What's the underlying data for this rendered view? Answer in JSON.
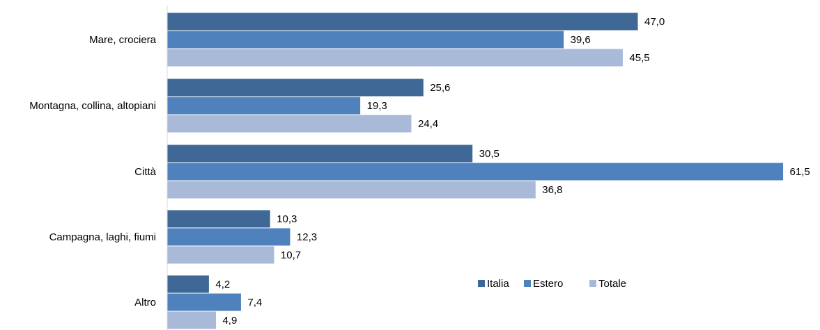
{
  "chart_data": {
    "type": "bar",
    "orientation": "horizontal",
    "categories": [
      "Mare, crociera",
      "Montagna, collina, altopiani",
      "Città",
      "Campagna, laghi, fiumi",
      "Altro"
    ],
    "series": [
      {
        "name": "Italia",
        "values": [
          47.0,
          25.6,
          30.5,
          10.3,
          4.2
        ],
        "labels": [
          "47,0",
          "25,6",
          "30,5",
          "10,3",
          "4,2"
        ]
      },
      {
        "name": "Estero",
        "values": [
          39.6,
          19.3,
          61.5,
          12.3,
          7.4
        ],
        "labels": [
          "39,6",
          "19,3",
          "61,5",
          "12,3",
          "7,4"
        ]
      },
      {
        "name": "Totale",
        "values": [
          45.5,
          24.4,
          36.8,
          10.7,
          4.9
        ],
        "labels": [
          "45,5",
          "24,4",
          "36,8",
          "10,7",
          "4,9"
        ]
      }
    ],
    "colors": [
      "#3f6897",
      "#4f81bd",
      "#a9bad8"
    ],
    "xlim": [
      0,
      65
    ],
    "grid": false,
    "legend_position": "bottom-right",
    "title": "",
    "xlabel": "",
    "ylabel": ""
  }
}
